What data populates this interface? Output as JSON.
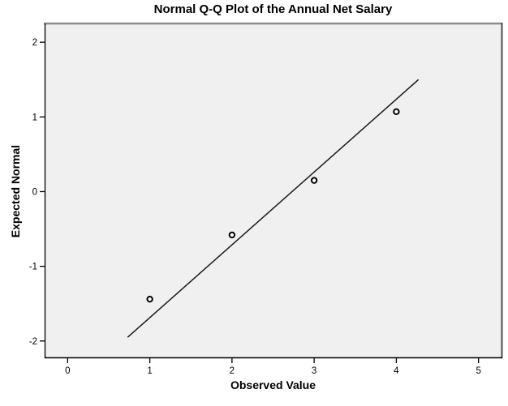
{
  "chart_data": {
    "type": "scatter",
    "title": "Normal Q-Q Plot of the Annual Net Salary",
    "xlabel": "Observed Value",
    "ylabel": "Expected Normal",
    "xlim": [
      -0.28,
      5.28
    ],
    "ylim": [
      -2.23,
      2.24
    ],
    "x_ticks": [
      0,
      1,
      2,
      3,
      4,
      5
    ],
    "y_ticks": [
      -2,
      -1,
      0,
      1,
      2
    ],
    "points": [
      {
        "x": 1,
        "y": -1.44
      },
      {
        "x": 2,
        "y": -0.58
      },
      {
        "x": 3,
        "y": 0.15
      },
      {
        "x": 4,
        "y": 1.07
      }
    ],
    "reference_line": {
      "x1": 0.73,
      "y1": -1.95,
      "x2": 4.27,
      "y2": 1.5
    },
    "grid": false,
    "legend": "none",
    "marker": "open-circle",
    "colors": {
      "plot_bg": "#f0f0f0",
      "frame_top": "#8c8c8c",
      "frame_right": "#4d4d4d",
      "frame": "#000000",
      "line": "#1a1a1a",
      "marker_stroke": "#000000",
      "marker_fill": "#ffffff",
      "text": "#000000"
    }
  }
}
